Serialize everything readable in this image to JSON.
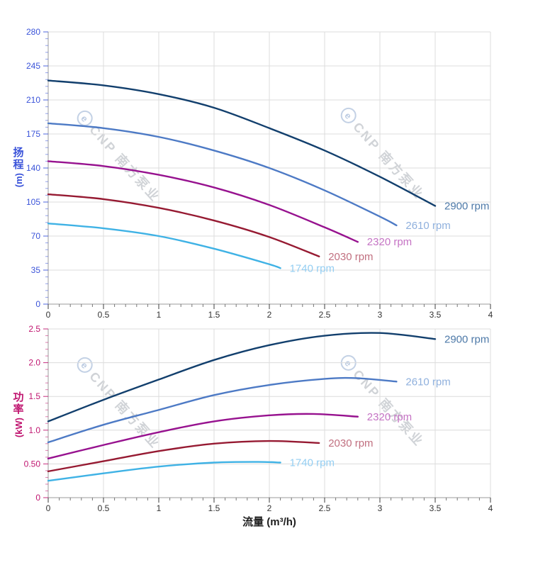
{
  "watermark": {
    "logo_letter": "e",
    "text": "CNP 南方泵业"
  },
  "x_axis": {
    "title": "流量 (m³/h)",
    "tick_labels": [
      "0",
      "0.5",
      "1",
      "1.5",
      "2",
      "2.5",
      "3",
      "3.5",
      "4"
    ],
    "min": 0,
    "max": 4,
    "minor_step": 0.1
  },
  "head_chart": {
    "y_title_lines": [
      "扬",
      "程"
    ],
    "y_unit": "(m)",
    "accent": "#3a53d9",
    "y_tick_labels": [
      "0",
      "35",
      "70",
      "105",
      "140",
      "175",
      "210",
      "245",
      "280"
    ],
    "y_min": 0,
    "y_max": 280,
    "y_minor_step": 7
  },
  "power_chart": {
    "y_title_lines": [
      "功",
      "率"
    ],
    "y_unit": "(kW)",
    "accent": "#c01670",
    "y_tick_labels": [
      "0",
      "0.50",
      "1.0",
      "1.5",
      "2.0",
      "2.5"
    ],
    "y_min": 0,
    "y_max": 2.5,
    "y_minor_step": 0.1
  },
  "palette": {
    "grid": "#dcdcdc",
    "axis": "#9b9b9b",
    "tick_major": "#3c3c3c",
    "tick_minor": "#767676",
    "x_tick_label": "#333333"
  },
  "chart_data": [
    {
      "type": "line",
      "title": "",
      "xlabel": "流量 (m³/h)",
      "ylabel": "扬程 (m)",
      "xlim": [
        0,
        4
      ],
      "ylim": [
        0,
        280
      ],
      "grid": true,
      "legend_position": "end-of-curve",
      "series": [
        {
          "name": "2900 rpm",
          "color": "#123f6d",
          "label_color": "#4d79a8",
          "points": [
            [
              0,
              230
            ],
            [
              0.5,
              225
            ],
            [
              1,
              216
            ],
            [
              1.5,
              202
            ],
            [
              2,
              181
            ],
            [
              2.5,
              158
            ],
            [
              3,
              131
            ],
            [
              3.5,
              101
            ]
          ]
        },
        {
          "name": "2610 rpm",
          "color": "#4d7ac5",
          "label_color": "#8fb0dd",
          "points": [
            [
              0,
              186
            ],
            [
              0.5,
              181
            ],
            [
              1,
              172
            ],
            [
              1.5,
              158
            ],
            [
              2,
              140
            ],
            [
              2.5,
              117
            ],
            [
              3,
              90
            ],
            [
              3.15,
              81
            ]
          ]
        },
        {
          "name": "2320 rpm",
          "color": "#97128f",
          "label_color": "#c573c4",
          "points": [
            [
              0,
              147
            ],
            [
              0.5,
              142
            ],
            [
              1,
              133
            ],
            [
              1.5,
              120
            ],
            [
              2,
              102
            ],
            [
              2.5,
              79
            ],
            [
              2.8,
              64
            ]
          ]
        },
        {
          "name": "2030 rpm",
          "color": "#961a32",
          "label_color": "#c17080",
          "points": [
            [
              0,
              113
            ],
            [
              0.5,
              108
            ],
            [
              1,
              99
            ],
            [
              1.5,
              86
            ],
            [
              2,
              69
            ],
            [
              2.45,
              49
            ]
          ]
        },
        {
          "name": "1740 rpm",
          "color": "#3fb2e5",
          "label_color": "#94cef2",
          "points": [
            [
              0,
              83
            ],
            [
              0.5,
              78
            ],
            [
              1,
              70
            ],
            [
              1.5,
              57
            ],
            [
              2,
              41
            ],
            [
              2.1,
              37
            ]
          ]
        }
      ]
    },
    {
      "type": "line",
      "title": "",
      "xlabel": "流量 (m³/h)",
      "ylabel": "功率 (kW)",
      "xlim": [
        0,
        4
      ],
      "ylim": [
        0,
        2.5
      ],
      "grid": true,
      "legend_position": "end-of-curve",
      "series": [
        {
          "name": "2900 rpm",
          "color": "#123f6d",
          "label_color": "#4d79a8",
          "points": [
            [
              0,
              1.13
            ],
            [
              0.5,
              1.45
            ],
            [
              1,
              1.75
            ],
            [
              1.5,
              2.04
            ],
            [
              2,
              2.26
            ],
            [
              2.5,
              2.4
            ],
            [
              3,
              2.44
            ],
            [
              3.5,
              2.35
            ]
          ]
        },
        {
          "name": "2610 rpm",
          "color": "#4d7ac5",
          "label_color": "#8fb0dd",
          "points": [
            [
              0,
              0.82
            ],
            [
              0.5,
              1.08
            ],
            [
              1,
              1.3
            ],
            [
              1.5,
              1.52
            ],
            [
              2,
              1.67
            ],
            [
              2.5,
              1.76
            ],
            [
              2.8,
              1.77
            ],
            [
              3.15,
              1.72
            ]
          ]
        },
        {
          "name": "2320 rpm",
          "color": "#97128f",
          "label_color": "#c573c4",
          "points": [
            [
              0,
              0.58
            ],
            [
              0.5,
              0.78
            ],
            [
              1,
              0.97
            ],
            [
              1.5,
              1.13
            ],
            [
              2,
              1.22
            ],
            [
              2.4,
              1.24
            ],
            [
              2.8,
              1.2
            ]
          ]
        },
        {
          "name": "2030 rpm",
          "color": "#961a32",
          "label_color": "#c17080",
          "points": [
            [
              0,
              0.39
            ],
            [
              0.5,
              0.54
            ],
            [
              1,
              0.69
            ],
            [
              1.5,
              0.8
            ],
            [
              2,
              0.84
            ],
            [
              2.45,
              0.81
            ]
          ]
        },
        {
          "name": "1740 rpm",
          "color": "#3fb2e5",
          "label_color": "#94cef2",
          "points": [
            [
              0,
              0.25
            ],
            [
              0.5,
              0.36
            ],
            [
              1,
              0.46
            ],
            [
              1.5,
              0.52
            ],
            [
              1.9,
              0.53
            ],
            [
              2.1,
              0.52
            ]
          ]
        }
      ]
    }
  ]
}
